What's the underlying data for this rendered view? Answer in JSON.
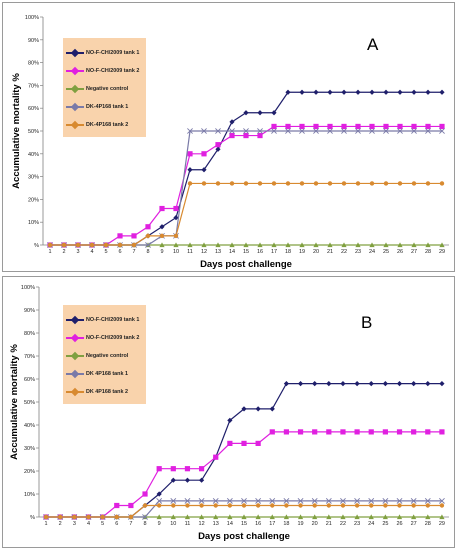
{
  "chart_data": [
    {
      "type": "line",
      "panel_label": "A",
      "xlabel": "Days post challenge",
      "ylabel": "Accumulative mortality %",
      "ylim": [
        0,
        100
      ],
      "xlim": [
        1,
        29
      ],
      "y_ticks": [
        "%",
        "10%",
        "20%",
        "30%",
        "40%",
        "50%",
        "60%",
        "70%",
        "80%",
        "90%",
        "100%"
      ],
      "x_ticks": [
        "1",
        "2",
        "3",
        "4",
        "5",
        "6",
        "7",
        "8",
        "9",
        "10",
        "11",
        "12",
        "13",
        "14",
        "15",
        "16",
        "17",
        "18",
        "19",
        "20",
        "21",
        "22",
        "23",
        "24",
        "25",
        "26",
        "27",
        "28",
        "29"
      ],
      "grid": false,
      "legend_position": "top-left",
      "x": [
        1,
        2,
        3,
        4,
        5,
        6,
        7,
        8,
        9,
        10,
        11,
        12,
        13,
        14,
        15,
        16,
        17,
        18,
        19,
        20,
        21,
        22,
        23,
        24,
        25,
        26,
        27,
        28,
        29
      ],
      "series": [
        {
          "name": "NO-F-CH/2009 tank 1",
          "color": "#1f1f6b",
          "marker": "diamond",
          "values": [
            0,
            0,
            0,
            0,
            0,
            0,
            0,
            4,
            8,
            12,
            33,
            33,
            42,
            54,
            58,
            58,
            58,
            67,
            67,
            67,
            67,
            67,
            67,
            67,
            67,
            67,
            67,
            67,
            67
          ]
        },
        {
          "name": "NO-F-CH/2009 tank 2",
          "color": "#e020e0",
          "marker": "square",
          "values": [
            0,
            0,
            0,
            0,
            0,
            4,
            4,
            8,
            16,
            16,
            40,
            40,
            44,
            48,
            48,
            48,
            52,
            52,
            52,
            52,
            52,
            52,
            52,
            52,
            52,
            52,
            52,
            52,
            52
          ]
        },
        {
          "name": "Negative control",
          "color": "#80a040",
          "marker": "triangle",
          "values": [
            0,
            0,
            0,
            0,
            0,
            0,
            0,
            0,
            0,
            0,
            0,
            0,
            0,
            0,
            0,
            0,
            0,
            0,
            0,
            0,
            0,
            0,
            0,
            0,
            0,
            0,
            0,
            0,
            0
          ]
        },
        {
          "name": "DK-4P168 tank 1",
          "color": "#7a7aa8",
          "marker": "x",
          "values": [
            0,
            0,
            0,
            0,
            0,
            0,
            0,
            0,
            4,
            4,
            50,
            50,
            50,
            50,
            50,
            50,
            50,
            50,
            50,
            50,
            50,
            50,
            50,
            50,
            50,
            50,
            50,
            50,
            50
          ]
        },
        {
          "name": "DK-4P168 tank 2",
          "color": "#d88a30",
          "marker": "star",
          "values": [
            0,
            0,
            0,
            0,
            0,
            0,
            0,
            4,
            4,
            4,
            27,
            27,
            27,
            27,
            27,
            27,
            27,
            27,
            27,
            27,
            27,
            27,
            27,
            27,
            27,
            27,
            27,
            27,
            27
          ]
        }
      ]
    },
    {
      "type": "line",
      "panel_label": "B",
      "xlabel": "Days post challenge",
      "ylabel": "Accumulative mortality %",
      "ylim": [
        0,
        100
      ],
      "xlim": [
        1,
        29
      ],
      "y_ticks": [
        "%",
        "10%",
        "20%",
        "30%",
        "40%",
        "50%",
        "60%",
        "70%",
        "80%",
        "90%",
        "100%"
      ],
      "x_ticks": [
        "1",
        "2",
        "3",
        "4",
        "5",
        "6",
        "7",
        "8",
        "9",
        "10",
        "11",
        "12",
        "13",
        "14",
        "15",
        "16",
        "17",
        "18",
        "19",
        "20",
        "21",
        "22",
        "23",
        "24",
        "25",
        "26",
        "27",
        "28",
        "29"
      ],
      "grid": false,
      "legend_position": "top-left",
      "x": [
        1,
        2,
        3,
        4,
        5,
        6,
        7,
        8,
        9,
        10,
        11,
        12,
        13,
        14,
        15,
        16,
        17,
        18,
        19,
        20,
        21,
        22,
        23,
        24,
        25,
        26,
        27,
        28,
        29
      ],
      "series": [
        {
          "name": "NO-F-CH/2009 tank 1",
          "color": "#1f1f6b",
          "marker": "diamond",
          "values": [
            0,
            0,
            0,
            0,
            0,
            0,
            0,
            5,
            10,
            16,
            16,
            16,
            26,
            42,
            47,
            47,
            47,
            58,
            58,
            58,
            58,
            58,
            58,
            58,
            58,
            58,
            58,
            58,
            58
          ]
        },
        {
          "name": "NO-F-CH/2009 tank 2",
          "color": "#e020e0",
          "marker": "square",
          "values": [
            0,
            0,
            0,
            0,
            0,
            5,
            5,
            10,
            21,
            21,
            21,
            21,
            26,
            32,
            32,
            32,
            37,
            37,
            37,
            37,
            37,
            37,
            37,
            37,
            37,
            37,
            37,
            37,
            37
          ]
        },
        {
          "name": "Negative control",
          "color": "#80a040",
          "marker": "triangle",
          "values": [
            0,
            0,
            0,
            0,
            0,
            0,
            0,
            0,
            0,
            0,
            0,
            0,
            0,
            0,
            0,
            0,
            0,
            0,
            0,
            0,
            0,
            0,
            0,
            0,
            0,
            0,
            0,
            0,
            0
          ]
        },
        {
          "name": "DK 4P168 tank 1",
          "color": "#7a7aa8",
          "marker": "x",
          "values": [
            0,
            0,
            0,
            0,
            0,
            0,
            0,
            0,
            7,
            7,
            7,
            7,
            7,
            7,
            7,
            7,
            7,
            7,
            7,
            7,
            7,
            7,
            7,
            7,
            7,
            7,
            7,
            7,
            7
          ]
        },
        {
          "name": "DK 4P168 tank 2",
          "color": "#d88a30",
          "marker": "star",
          "values": [
            0,
            0,
            0,
            0,
            0,
            0,
            0,
            5,
            5,
            5,
            5,
            5,
            5,
            5,
            5,
            5,
            5,
            5,
            5,
            5,
            5,
            5,
            5,
            5,
            5,
            5,
            5,
            5,
            5
          ]
        }
      ]
    }
  ]
}
